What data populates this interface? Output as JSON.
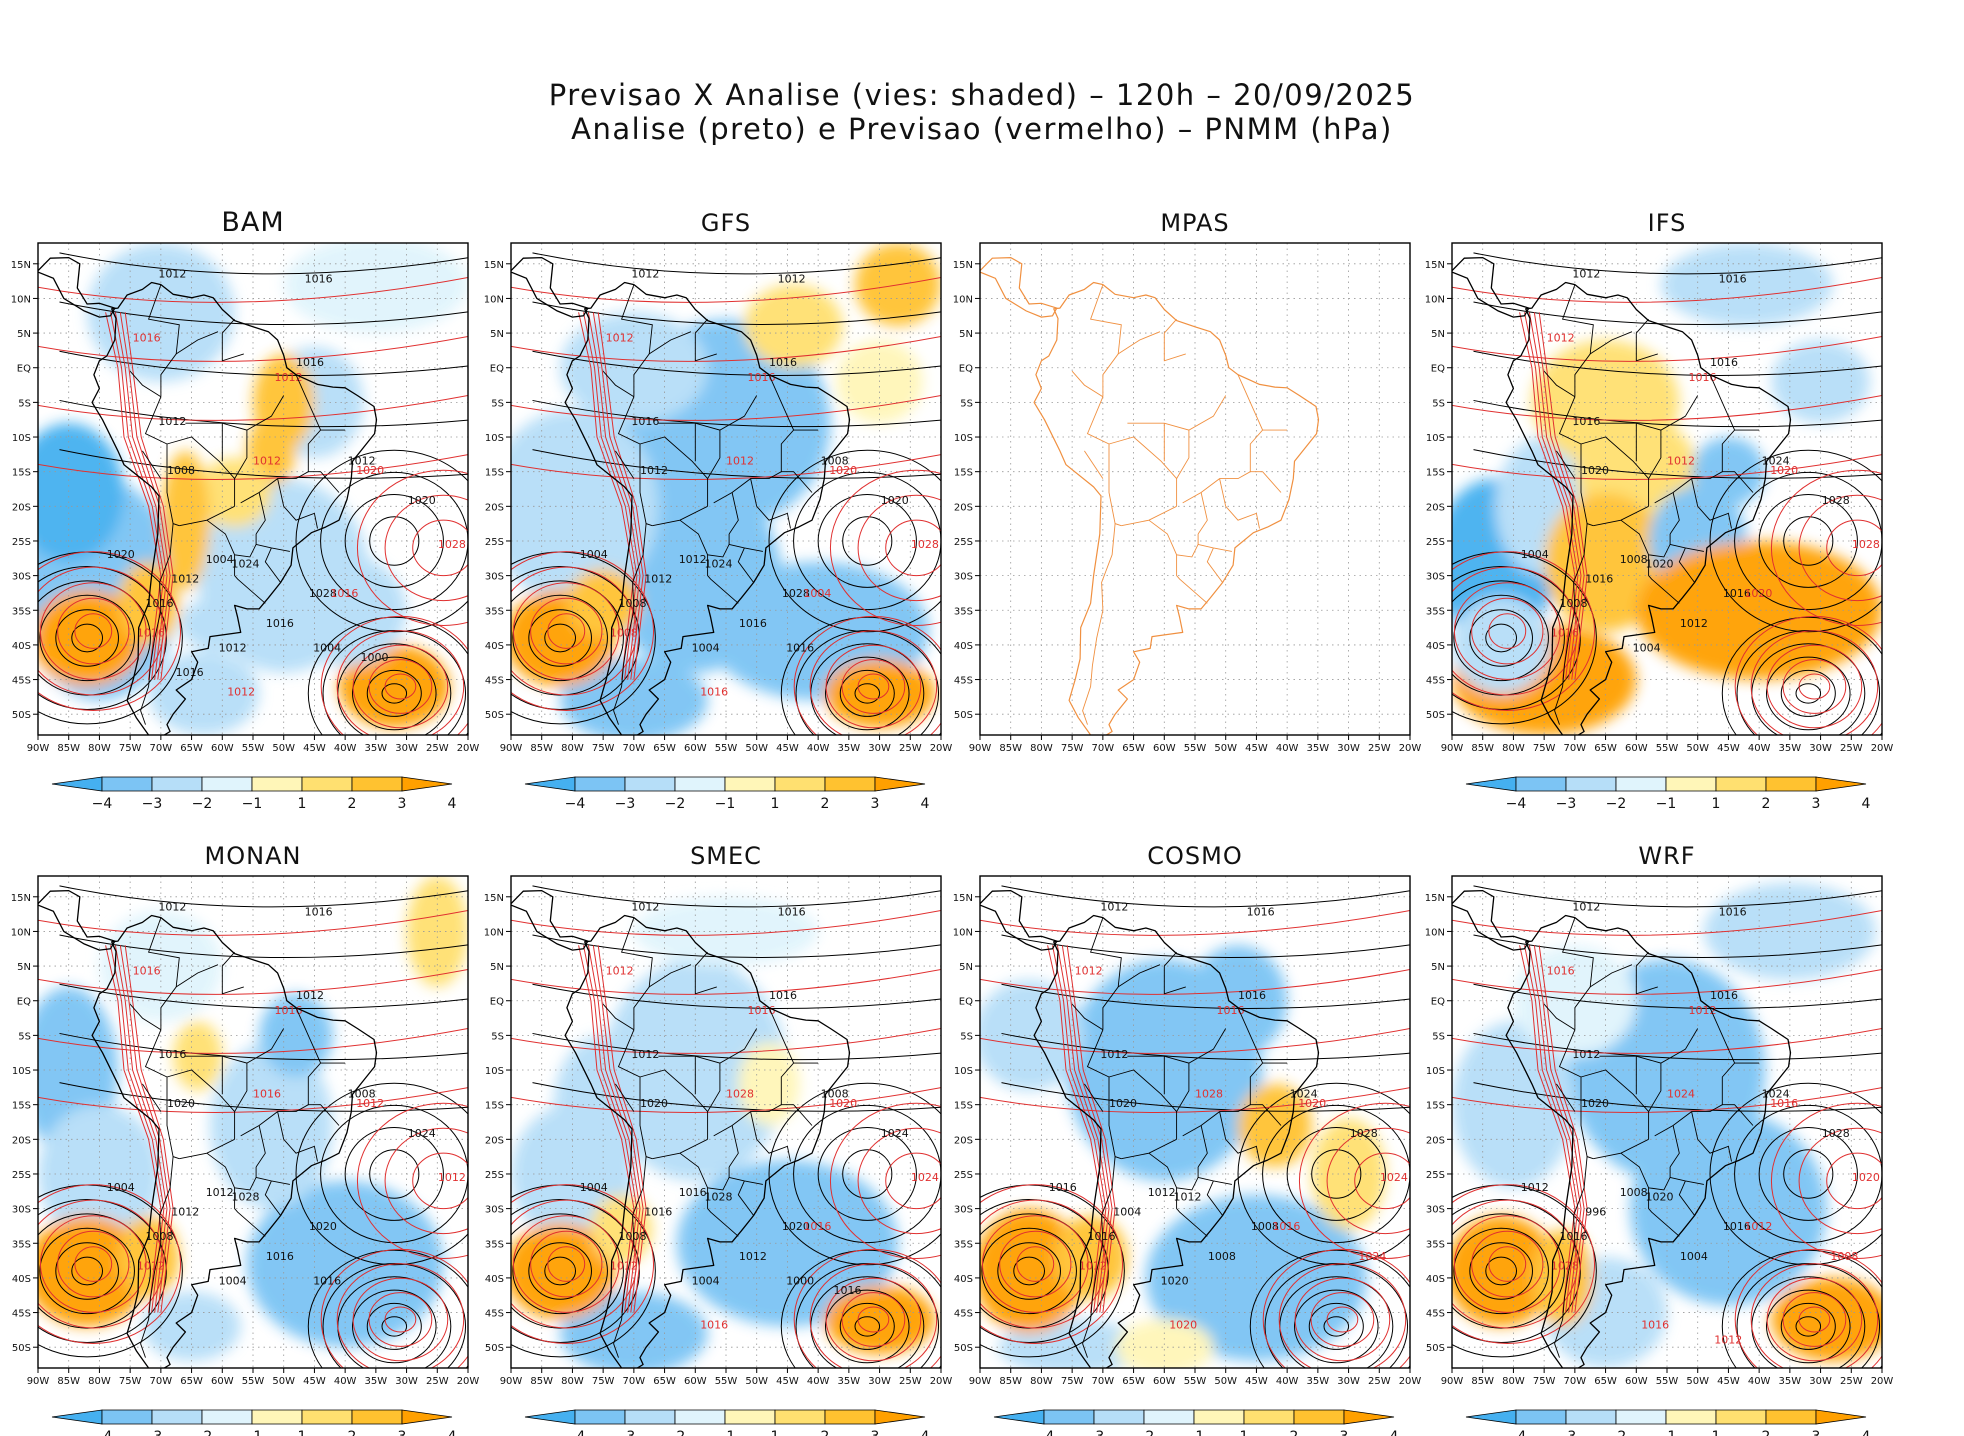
{
  "figure": {
    "title_line1": "Previsao X Analise (vies: shaded) – 120h – 20/09/2025",
    "title_line2": "Analise (preto) e Previsao (vermelho) – PNMM (hPa)"
  },
  "colors": {
    "neg4": "#45b0f0",
    "neg3": "#7cc4f4",
    "neg2": "#b6def8",
    "neg1": "#e0f4fc",
    "pos1": "#fff6b8",
    "pos2": "#ffe070",
    "pos3": "#ffc230",
    "pos4": "#ffa000",
    "analysis_contour": "#000000",
    "forecast_contour": "#e03030",
    "mpas_coast": "#f09040"
  },
  "chart_data": {
    "type": "heatmap",
    "variable": "PNMM (hPa)",
    "lead_time": "120h",
    "valid_date": "20/09/2025",
    "shaded": "vies (Previsao - Analise)",
    "contours": {
      "analise": "preto",
      "previsao": "vermelho"
    },
    "x_ticks": [
      "90W",
      "85W",
      "80W",
      "75W",
      "70W",
      "65W",
      "60W",
      "55W",
      "50W",
      "45W",
      "40W",
      "35W",
      "30W",
      "25W",
      "20W"
    ],
    "y_ticks": [
      "15N",
      "10N",
      "5N",
      "EQ",
      "5S",
      "10S",
      "15S",
      "20S",
      "25S",
      "30S",
      "35S",
      "40S",
      "45S",
      "50S"
    ],
    "lon_range": [
      -90,
      -20
    ],
    "lat_range": [
      -53,
      18
    ],
    "colorbar_levels": [
      "−4",
      "−3",
      "−2",
      "−1",
      "1",
      "2",
      "3",
      "4"
    ],
    "panels": [
      {
        "name": "BAM",
        "has_data": true,
        "labels_black": [
          "1012",
          "1016",
          "1012",
          "1016",
          "1008",
          "1012",
          "1020",
          "1024",
          "1028",
          "1020",
          "1004",
          "1016",
          "1012",
          "1016",
          "1012",
          "1004",
          "1000",
          "1016"
        ],
        "labels_red": [
          "1016",
          "1012",
          "1020",
          "1028",
          "1012",
          "1016",
          "1016",
          "1012"
        ]
      },
      {
        "name": "GFS",
        "has_data": true,
        "labels_black": [
          "1012",
          "1012",
          "1016",
          "1016",
          "1012",
          "1008",
          "1020",
          "1024",
          "1028",
          "1004",
          "1012",
          "1016",
          "1012",
          "1008",
          "1004",
          "1016"
        ],
        "labels_red": [
          "1012",
          "1016",
          "1020",
          "1028",
          "1012",
          "1008",
          "1004",
          "1016"
        ]
      },
      {
        "name": "MPAS",
        "has_data": false,
        "labels_black": [],
        "labels_red": []
      },
      {
        "name": "IFS",
        "has_data": true,
        "labels_black": [
          "1012",
          "1016",
          "1016",
          "1016",
          "1020",
          "1024",
          "1028",
          "1020",
          "1016",
          "1004",
          "1008",
          "1012",
          "1016",
          "1008",
          "1004"
        ],
        "labels_red": [
          "1012",
          "1016",
          "1020",
          "1028",
          "1012",
          "1016",
          "1020"
        ]
      },
      {
        "name": "MONAN",
        "has_data": true,
        "labels_black": [
          "1012",
          "1016",
          "1016",
          "1012",
          "1020",
          "1008",
          "1024",
          "1028",
          "1020",
          "1004",
          "1012",
          "1016",
          "1012",
          "1008",
          "1004",
          "1016"
        ],
        "labels_red": [
          "1016",
          "1016",
          "1012",
          "1012",
          "1016",
          "1012"
        ]
      },
      {
        "name": "SMEC",
        "has_data": true,
        "labels_black": [
          "1012",
          "1016",
          "1012",
          "1016",
          "1020",
          "1008",
          "1024",
          "1028",
          "1020",
          "1004",
          "1016",
          "1012",
          "1016",
          "1008",
          "1004",
          "1000",
          "1016"
        ],
        "labels_red": [
          "1012",
          "1016",
          "1020",
          "1024",
          "1028",
          "1012",
          "1016",
          "1016"
        ]
      },
      {
        "name": "COSMO",
        "has_data": true,
        "labels_black": [
          "1012",
          "1016",
          "1012",
          "1016",
          "1020",
          "1024",
          "1028",
          "1012",
          "1008",
          "1016",
          "1012",
          "1008",
          "1004",
          "1016",
          "1020"
        ],
        "labels_red": [
          "1012",
          "1016",
          "1020",
          "1024",
          "1028",
          "1012",
          "1016",
          "1020",
          "1024"
        ]
      },
      {
        "name": "WRF",
        "has_data": true,
        "labels_black": [
          "1012",
          "1016",
          "1012",
          "1016",
          "1020",
          "1024",
          "1028",
          "1020",
          "1016",
          "1012",
          "1008",
          "1004",
          "996",
          "1016"
        ],
        "labels_red": [
          "1016",
          "1012",
          "1016",
          "1020",
          "1024",
          "1028",
          "1012",
          "1016",
          "1008",
          "1012"
        ]
      }
    ]
  }
}
